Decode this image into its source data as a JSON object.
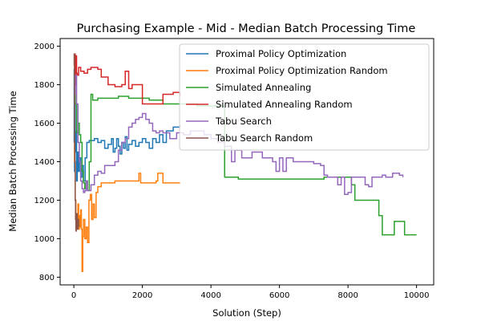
{
  "chart_data": {
    "type": "line",
    "title": "Purchasing Example - Mid - Median Batch Processing Time",
    "xlabel": "Solution (Step)",
    "ylabel": "Median Batch Processing Time",
    "xlim": [
      -400,
      10500
    ],
    "ylim": [
      760,
      2040
    ],
    "xticks": [
      0,
      2000,
      4000,
      6000,
      8000,
      10000
    ],
    "yticks": [
      800,
      1000,
      1200,
      1400,
      1600,
      1800,
      2000
    ],
    "grid": false,
    "legend_position": "top-right",
    "series": [
      {
        "name": "Proximal Policy Optimization",
        "color": "#1f77b4",
        "points": [
          [
            0,
            1500
          ],
          [
            10,
            1880
          ],
          [
            20,
            1350
          ],
          [
            30,
            1700
          ],
          [
            40,
            1450
          ],
          [
            60,
            1560
          ],
          [
            80,
            1300
          ],
          [
            100,
            1450
          ],
          [
            130,
            1350
          ],
          [
            160,
            1420
          ],
          [
            200,
            1320
          ],
          [
            240,
            1380
          ],
          [
            280,
            1300
          ],
          [
            330,
            1420
          ],
          [
            380,
            1500
          ],
          [
            450,
            1510
          ],
          [
            600,
            1520
          ],
          [
            700,
            1500
          ],
          [
            800,
            1510
          ],
          [
            900,
            1470
          ],
          [
            1000,
            1490
          ],
          [
            1100,
            1520
          ],
          [
            1150,
            1450
          ],
          [
            1200,
            1470
          ],
          [
            1250,
            1520
          ],
          [
            1300,
            1480
          ],
          [
            1350,
            1440
          ],
          [
            1400,
            1500
          ],
          [
            1450,
            1470
          ],
          [
            1500,
            1530
          ],
          [
            1550,
            1460
          ],
          [
            1600,
            1490
          ],
          [
            1700,
            1510
          ],
          [
            1800,
            1480
          ],
          [
            1900,
            1500
          ],
          [
            2000,
            1520
          ],
          [
            2100,
            1500
          ],
          [
            2200,
            1470
          ],
          [
            2300,
            1520
          ],
          [
            2400,
            1500
          ],
          [
            2500,
            1540
          ],
          [
            2600,
            1500
          ],
          [
            2700,
            1560
          ],
          [
            2900,
            1580
          ],
          [
            3100,
            1590
          ]
        ]
      },
      {
        "name": "Proximal Policy Optimization Random",
        "color": "#ff7f0e",
        "points": [
          [
            0,
            1500
          ],
          [
            20,
            1400
          ],
          [
            40,
            1200
          ],
          [
            60,
            1100
          ],
          [
            80,
            1050
          ],
          [
            100,
            1080
          ],
          [
            120,
            1180
          ],
          [
            140,
            1050
          ],
          [
            160,
            1120
          ],
          [
            180,
            1060
          ],
          [
            200,
            1150
          ],
          [
            220,
            1050
          ],
          [
            240,
            830
          ],
          [
            260,
            1010
          ],
          [
            280,
            1100
          ],
          [
            320,
            1000
          ],
          [
            360,
            1060
          ],
          [
            400,
            980
          ],
          [
            440,
            1200
          ],
          [
            480,
            1230
          ],
          [
            520,
            1100
          ],
          [
            560,
            1180
          ],
          [
            600,
            1110
          ],
          [
            650,
            1240
          ],
          [
            700,
            1270
          ],
          [
            800,
            1290
          ],
          [
            1000,
            1290
          ],
          [
            1200,
            1300
          ],
          [
            1500,
            1300
          ],
          [
            1800,
            1300
          ],
          [
            1900,
            1340
          ],
          [
            1950,
            1290
          ],
          [
            2200,
            1290
          ],
          [
            2400,
            1300
          ],
          [
            2450,
            1340
          ],
          [
            2550,
            1340
          ],
          [
            2600,
            1290
          ],
          [
            3100,
            1290
          ]
        ]
      },
      {
        "name": "Simulated Annealing",
        "color": "#2ca02c",
        "points": [
          [
            0,
            1850
          ],
          [
            40,
            1700
          ],
          [
            80,
            1550
          ],
          [
            120,
            1600
          ],
          [
            160,
            1540
          ],
          [
            200,
            1500
          ],
          [
            240,
            1350
          ],
          [
            280,
            1290
          ],
          [
            320,
            1260
          ],
          [
            360,
            1300
          ],
          [
            400,
            1250
          ],
          [
            450,
            1400
          ],
          [
            500,
            1750
          ],
          [
            550,
            1720
          ],
          [
            700,
            1730
          ],
          [
            1000,
            1730
          ],
          [
            1300,
            1740
          ],
          [
            1600,
            1730
          ],
          [
            2000,
            1730
          ],
          [
            2200,
            1720
          ],
          [
            2600,
            1700
          ],
          [
            3400,
            1700
          ],
          [
            3600,
            1690
          ],
          [
            4200,
            1690
          ],
          [
            4380,
            1680
          ],
          [
            4400,
            1320
          ],
          [
            4800,
            1310
          ],
          [
            7300,
            1320
          ],
          [
            7900,
            1320
          ],
          [
            8100,
            1280
          ],
          [
            8200,
            1200
          ],
          [
            8800,
            1200
          ],
          [
            8900,
            1120
          ],
          [
            9000,
            1020
          ],
          [
            9300,
            1020
          ],
          [
            9350,
            1090
          ],
          [
            9600,
            1090
          ],
          [
            9650,
            1020
          ],
          [
            10000,
            1020
          ]
        ]
      },
      {
        "name": "Simulated Annealing Random",
        "color": "#d62728",
        "points": [
          [
            0,
            1850
          ],
          [
            20,
            1960
          ],
          [
            40,
            1800
          ],
          [
            60,
            1950
          ],
          [
            80,
            1860
          ],
          [
            100,
            1850
          ],
          [
            140,
            1890
          ],
          [
            200,
            1870
          ],
          [
            300,
            1860
          ],
          [
            400,
            1880
          ],
          [
            500,
            1890
          ],
          [
            700,
            1880
          ],
          [
            800,
            1840
          ],
          [
            1000,
            1800
          ],
          [
            1200,
            1790
          ],
          [
            1400,
            1800
          ],
          [
            1500,
            1870
          ],
          [
            1600,
            1780
          ],
          [
            1700,
            1800
          ],
          [
            1900,
            1800
          ],
          [
            2000,
            1700
          ],
          [
            2200,
            1700
          ],
          [
            2600,
            1750
          ],
          [
            2900,
            1760
          ],
          [
            3100,
            1740
          ]
        ]
      },
      {
        "name": "Tabu Search",
        "color": "#9467bd",
        "points": [
          [
            0,
            1750
          ],
          [
            40,
            1850
          ],
          [
            80,
            1700
          ],
          [
            120,
            1500
          ],
          [
            160,
            1400
          ],
          [
            200,
            1300
          ],
          [
            240,
            1260
          ],
          [
            280,
            1240
          ],
          [
            320,
            1250
          ],
          [
            360,
            1300
          ],
          [
            400,
            1250
          ],
          [
            500,
            1280
          ],
          [
            600,
            1330
          ],
          [
            700,
            1350
          ],
          [
            800,
            1340
          ],
          [
            900,
            1380
          ],
          [
            1000,
            1380
          ],
          [
            1200,
            1400
          ],
          [
            1300,
            1460
          ],
          [
            1400,
            1500
          ],
          [
            1500,
            1520
          ],
          [
            1600,
            1580
          ],
          [
            1700,
            1600
          ],
          [
            1800,
            1620
          ],
          [
            1900,
            1630
          ],
          [
            2000,
            1650
          ],
          [
            2100,
            1620
          ],
          [
            2200,
            1600
          ],
          [
            2300,
            1560
          ],
          [
            2400,
            1550
          ],
          [
            2500,
            1560
          ],
          [
            2600,
            1550
          ],
          [
            2800,
            1520
          ],
          [
            3000,
            1550
          ],
          [
            3200,
            1540
          ],
          [
            3400,
            1560
          ],
          [
            3600,
            1560
          ],
          [
            3800,
            1540
          ],
          [
            4000,
            1520
          ],
          [
            4200,
            1500
          ],
          [
            4400,
            1480
          ],
          [
            4600,
            1400
          ],
          [
            4700,
            1460
          ],
          [
            4900,
            1420
          ],
          [
            5200,
            1450
          ],
          [
            5500,
            1420
          ],
          [
            5800,
            1400
          ],
          [
            5900,
            1350
          ],
          [
            6000,
            1420
          ],
          [
            6100,
            1350
          ],
          [
            6200,
            1420
          ],
          [
            6400,
            1400
          ],
          [
            6800,
            1400
          ],
          [
            7000,
            1390
          ],
          [
            7200,
            1380
          ],
          [
            7300,
            1330
          ],
          [
            7400,
            1320
          ],
          [
            7600,
            1320
          ],
          [
            7700,
            1280
          ],
          [
            7800,
            1320
          ],
          [
            7900,
            1230
          ],
          [
            8000,
            1240
          ],
          [
            8100,
            1320
          ],
          [
            8400,
            1320
          ],
          [
            8500,
            1280
          ],
          [
            8600,
            1270
          ],
          [
            8700,
            1320
          ],
          [
            8900,
            1320
          ],
          [
            9000,
            1330
          ],
          [
            9100,
            1320
          ],
          [
            9300,
            1340
          ],
          [
            9500,
            1330
          ],
          [
            9600,
            1320
          ]
        ]
      },
      {
        "name": "Tabu Search Random",
        "color": "#8c564b",
        "points": [
          [
            0,
            1900
          ],
          [
            10,
            1960
          ],
          [
            20,
            1500
          ],
          [
            30,
            1400
          ],
          [
            40,
            1200
          ],
          [
            50,
            1100
          ],
          [
            60,
            1040
          ],
          [
            70,
            1060
          ],
          [
            80,
            1130
          ],
          [
            100,
            1050
          ],
          [
            120,
            1100
          ],
          [
            140,
            1060
          ]
        ]
      }
    ]
  }
}
